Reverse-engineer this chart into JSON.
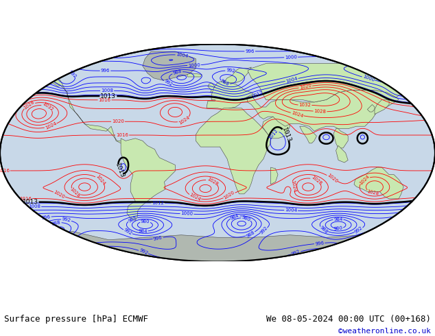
{
  "title_left": "Surface pressure [hPa] ECMWF",
  "title_right": "We 08-05-2024 00:00 UTC (00+168)",
  "credit": "©weatheronline.co.uk",
  "bg_color": "#ffffff",
  "map_ocean": "#c8d8e8",
  "land_color": "#c8e8b0",
  "land_gray": "#b0b8b0",
  "contour_color_low": "#0000ff",
  "contour_color_high": "#ff0000",
  "contour_color_bold": "#000000",
  "title_fontsize": 9,
  "credit_color": "#0000cc",
  "label_fontsize_small": 5.5,
  "label_fontsize_bold": 7
}
